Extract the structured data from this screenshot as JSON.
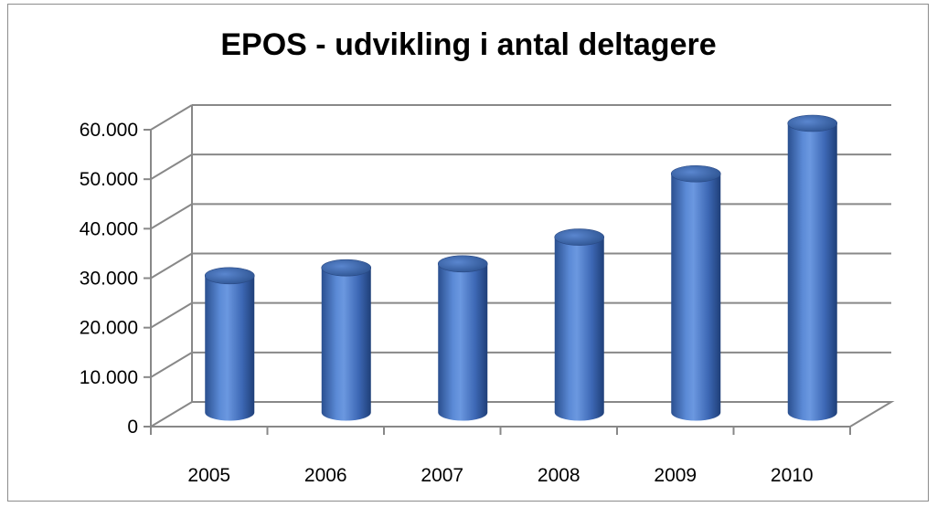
{
  "chart_data": {
    "type": "bar",
    "title": "EPOS - udvikling i antal deltagere",
    "categories": [
      "2005",
      "2006",
      "2007",
      "2008",
      "2009",
      "2010"
    ],
    "series": [
      {
        "values": [
          28000,
          29600,
          30400,
          35800,
          48600,
          58800
        ]
      }
    ],
    "ylim": [
      0,
      60000
    ],
    "yticks": [
      0,
      10000,
      20000,
      30000,
      40000,
      50000,
      60000
    ],
    "ytick_labels": [
      "0",
      "10.000",
      "20.000",
      "30.000",
      "40.000",
      "50.000",
      "60.000"
    ],
    "grid": true,
    "bar_shape": "3d-cylinder",
    "bar_color": "#4472c4",
    "legend": "none"
  }
}
